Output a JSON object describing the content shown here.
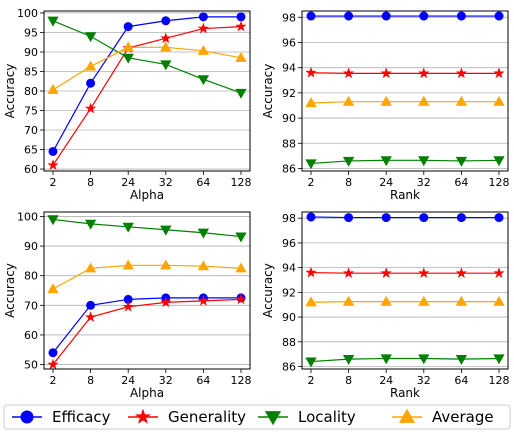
{
  "chart_data": [
    {
      "type": "line",
      "title": "",
      "xlabel": "Alpha",
      "ylabel": "Accuracy",
      "categories": [
        "2",
        "8",
        "24",
        "32",
        "64",
        "128"
      ],
      "yticks": [
        60,
        65,
        70,
        75,
        80,
        85,
        90,
        95,
        100
      ],
      "ylim": [
        59.5,
        100.5
      ],
      "grid": "horizontal",
      "series": [
        {
          "name": "Efficacy",
          "values": [
            64.5,
            82.0,
            96.5,
            98.0,
            99.0,
            99.0
          ]
        },
        {
          "name": "Generality",
          "values": [
            61.0,
            75.5,
            91.0,
            93.5,
            96.0,
            96.5
          ]
        },
        {
          "name": "Locality",
          "values": [
            98.0,
            94.0,
            88.5,
            86.8,
            83.0,
            79.5
          ]
        },
        {
          "name": "Average",
          "values": [
            80.3,
            86.3,
            91.2,
            91.2,
            90.3,
            88.5
          ]
        }
      ]
    },
    {
      "type": "line",
      "title": "",
      "xlabel": "Rank",
      "ylabel": "Accuracy",
      "categories": [
        "2",
        "8",
        "24",
        "32",
        "64",
        "128"
      ],
      "yticks": [
        86,
        88,
        90,
        92,
        94,
        96,
        98
      ],
      "ylim": [
        85.8,
        98.5
      ],
      "grid": "horizontal",
      "series": [
        {
          "name": "Efficacy",
          "values": [
            98.1,
            98.1,
            98.1,
            98.1,
            98.1,
            98.1
          ]
        },
        {
          "name": "Generality",
          "values": [
            93.6,
            93.55,
            93.55,
            93.55,
            93.55,
            93.55
          ]
        },
        {
          "name": "Locality",
          "values": [
            86.4,
            86.6,
            86.65,
            86.65,
            86.6,
            86.65
          ]
        },
        {
          "name": "Average",
          "values": [
            91.2,
            91.3,
            91.3,
            91.3,
            91.3,
            91.3
          ]
        }
      ]
    },
    {
      "type": "line",
      "title": "",
      "xlabel": "Alpha",
      "ylabel": "Accuracy",
      "categories": [
        "2",
        "8",
        "24",
        "32",
        "64",
        "128"
      ],
      "yticks": [
        50,
        60,
        70,
        80,
        90,
        100
      ],
      "ylim": [
        48.5,
        101.5
      ],
      "grid": "horizontal",
      "series": [
        {
          "name": "Efficacy",
          "values": [
            54.0,
            70.0,
            72.0,
            72.5,
            72.5,
            72.5
          ]
        },
        {
          "name": "Generality",
          "values": [
            50.0,
            66.0,
            69.5,
            71.0,
            71.5,
            72.0
          ]
        },
        {
          "name": "Locality",
          "values": [
            99.0,
            97.5,
            96.5,
            95.5,
            94.5,
            93.2
          ]
        },
        {
          "name": "Average",
          "values": [
            75.5,
            82.5,
            83.5,
            83.5,
            83.2,
            82.5
          ]
        }
      ]
    },
    {
      "type": "line",
      "title": "",
      "xlabel": "Rank",
      "ylabel": "Accuracy",
      "categories": [
        "2",
        "8",
        "24",
        "32",
        "64",
        "128"
      ],
      "yticks": [
        86,
        88,
        90,
        92,
        94,
        96,
        98
      ],
      "ylim": [
        85.8,
        98.5
      ],
      "grid": "horizontal",
      "series": [
        {
          "name": "Efficacy",
          "values": [
            98.1,
            98.05,
            98.05,
            98.05,
            98.05,
            98.05
          ]
        },
        {
          "name": "Generality",
          "values": [
            93.6,
            93.55,
            93.55,
            93.55,
            93.55,
            93.55
          ]
        },
        {
          "name": "Locality",
          "values": [
            86.4,
            86.6,
            86.65,
            86.65,
            86.6,
            86.65
          ]
        },
        {
          "name": "Average",
          "values": [
            91.2,
            91.25,
            91.25,
            91.25,
            91.25,
            91.25
          ]
        }
      ]
    }
  ],
  "legend": {
    "placement": "bottom",
    "entries": [
      {
        "name": "Efficacy",
        "color": "#0000ff",
        "marker": "circle"
      },
      {
        "name": "Generality",
        "color": "#ff0000",
        "marker": "star"
      },
      {
        "name": "Locality",
        "color": "#008000",
        "marker": "triangle-down"
      },
      {
        "name": "Average",
        "color": "#ffa500",
        "marker": "triangle-up"
      }
    ]
  }
}
